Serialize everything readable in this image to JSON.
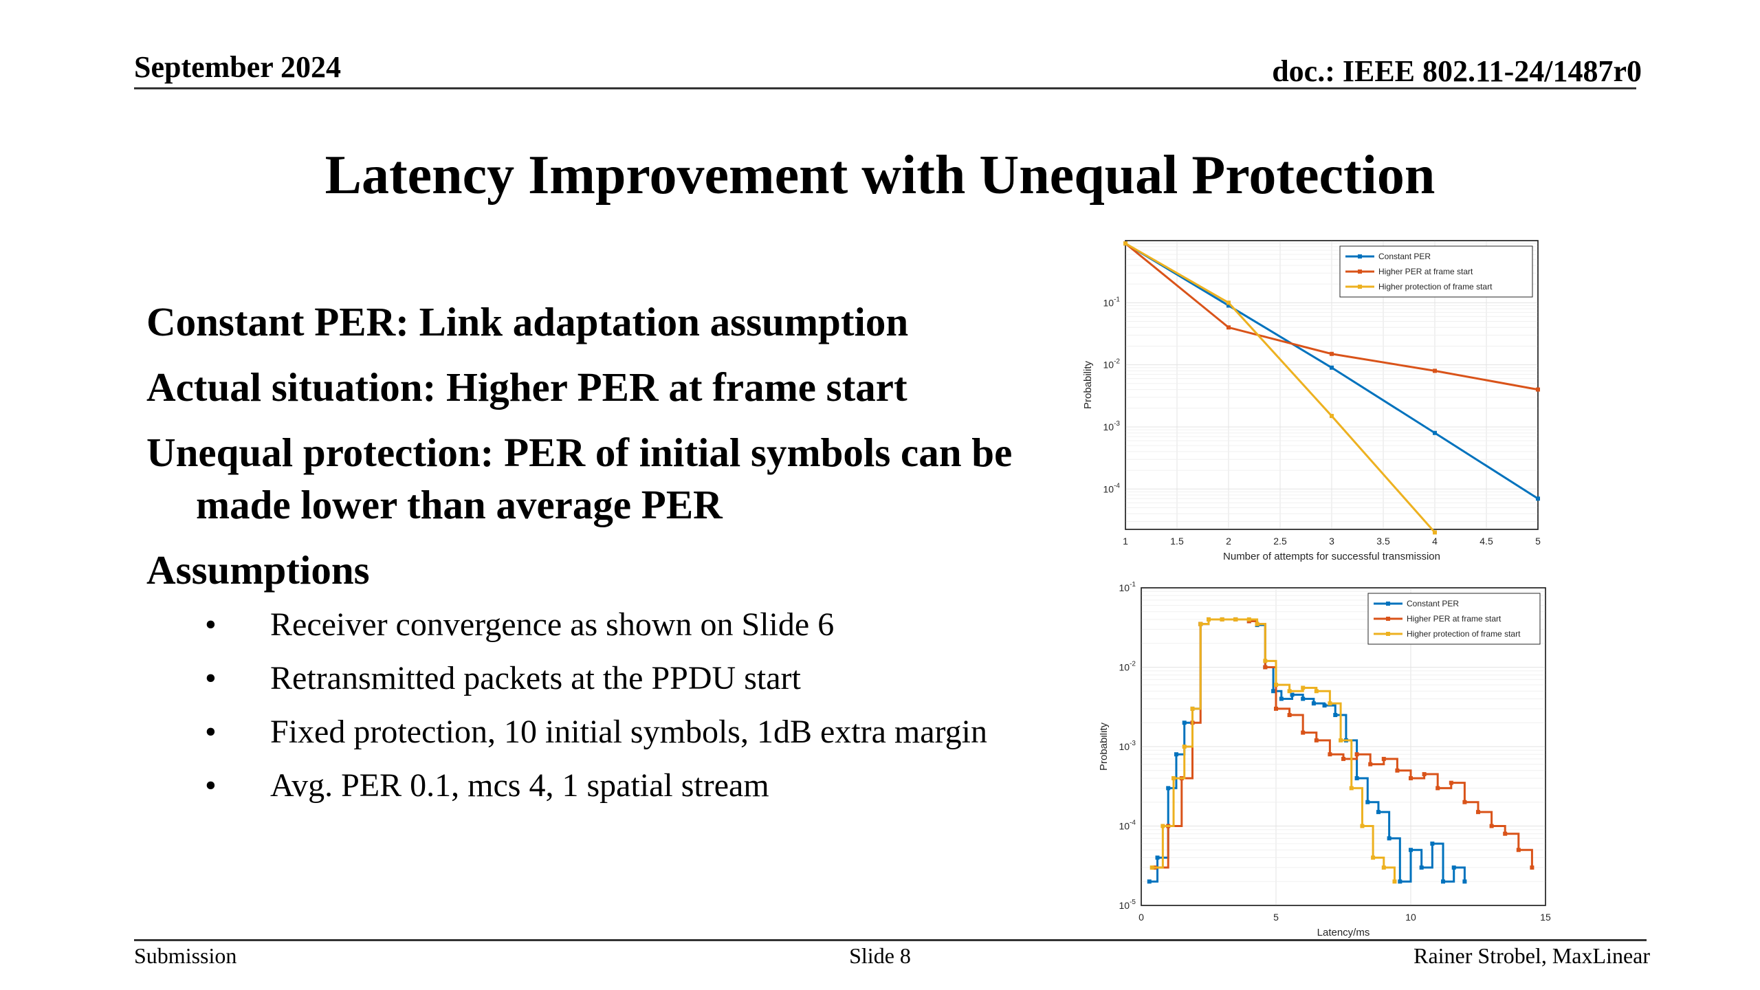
{
  "header": {
    "date": "September 2024",
    "doc_id": "doc.: IEEE 802.11-24/1487r0"
  },
  "title": "Latency Improvement with Unequal Protection",
  "bullets_level1": [
    "Constant PER: Link adaptation assumption",
    "Actual situation: Higher PER at frame start",
    "Unequal protection: PER of initial symbols can be made lower than average PER",
    "Assumptions"
  ],
  "bullets_level2": [
    "Receiver convergence as shown on Slide 6",
    "Retransmitted packets at the PPDU start",
    "Fixed protection, 10 initial symbols, 1dB extra margin",
    "Avg. PER 0.1, mcs 4, 1 spatial stream"
  ],
  "bullet_glyph": "•",
  "footer": {
    "left": "Submission",
    "center": "Slide 8",
    "right": "Rainer Strobel, MaxLinear"
  },
  "colors": {
    "constant": "#0072BD",
    "higher_per": "#D95319",
    "higher_prot": "#EDB120"
  },
  "chart_data": [
    {
      "type": "line",
      "xlabel": "Number of attempts for successful transmission",
      "ylabel": "Probability",
      "xlim": [
        1,
        5
      ],
      "ylim_log10": [
        -4.65,
        -0.0
      ],
      "y_scale": "log",
      "grid": true,
      "legend_position": "top-right",
      "x_ticks": [
        "1",
        "1.5",
        "2",
        "2.5",
        "3",
        "3.5",
        "4",
        "4.5",
        "5"
      ],
      "y_ticks": [
        {
          "base": "10",
          "exp": "-1",
          "v": -1
        },
        {
          "base": "10",
          "exp": "-2",
          "v": -2
        },
        {
          "base": "10",
          "exp": "-3",
          "v": -3
        },
        {
          "base": "10",
          "exp": "-4",
          "v": -4
        }
      ],
      "series": [
        {
          "name": "Constant PER",
          "x": [
            1,
            2,
            3,
            4,
            5
          ],
          "y": [
            0.9,
            0.09,
            0.009,
            0.0008,
            7e-05
          ]
        },
        {
          "name": "Higher PER at frame start",
          "x": [
            1,
            2,
            3,
            4,
            5
          ],
          "y": [
            0.9,
            0.04,
            0.015,
            0.008,
            0.004
          ]
        },
        {
          "name": "Higher protection of frame start",
          "x": [
            1,
            2,
            3,
            4
          ],
          "y": [
            0.9,
            0.1,
            0.0015,
            2e-05
          ]
        }
      ]
    },
    {
      "type": "line",
      "xlabel": "Latency/ms",
      "ylabel": "Probability",
      "xlim": [
        0,
        15
      ],
      "ylim_log10": [
        -5,
        -1
      ],
      "y_scale": "log",
      "grid": true,
      "legend_position": "top-right",
      "x_ticks": [
        "0",
        "5",
        "10",
        "15"
      ],
      "y_ticks": [
        {
          "base": "10",
          "exp": "-1",
          "v": -1
        },
        {
          "base": "10",
          "exp": "-2",
          "v": -2
        },
        {
          "base": "10",
          "exp": "-3",
          "v": -3
        },
        {
          "base": "10",
          "exp": "-4",
          "v": -4
        },
        {
          "base": "10",
          "exp": "-5",
          "v": -5
        }
      ],
      "series": [
        {
          "name": "Constant PER",
          "x": [
            0.3,
            0.6,
            1.0,
            1.3,
            1.6,
            1.9,
            2.2,
            2.5,
            3.0,
            3.5,
            4.0,
            4.3,
            4.6,
            4.9,
            5.2,
            5.6,
            6.0,
            6.4,
            6.8,
            7.2,
            7.6,
            8.0,
            8.4,
            8.8,
            9.2,
            9.6,
            10.0,
            10.4,
            10.8,
            11.2,
            11.6,
            12.0
          ],
          "y": [
            2e-05,
            4e-05,
            0.0003,
            0.0008,
            0.002,
            0.003,
            0.035,
            0.04,
            0.04,
            0.04,
            0.038,
            0.034,
            0.01,
            0.005,
            0.004,
            0.0045,
            0.004,
            0.0035,
            0.0033,
            0.0025,
            0.0012,
            0.0004,
            0.0002,
            0.00015,
            7e-05,
            2e-05,
            5e-05,
            3e-05,
            6e-05,
            2e-05,
            3e-05,
            2e-05
          ]
        },
        {
          "name": "Higher PER at frame start",
          "x": [
            0.5,
            1.0,
            1.5,
            1.9,
            2.2,
            2.5,
            3.0,
            3.5,
            4.0,
            4.3,
            4.6,
            5.0,
            5.5,
            6.0,
            6.5,
            7.0,
            7.5,
            8.0,
            8.5,
            9.0,
            9.5,
            10.0,
            10.5,
            11.0,
            11.5,
            12.0,
            12.5,
            13.0,
            13.5,
            14.0,
            14.5
          ],
          "y": [
            3e-05,
            0.0001,
            0.0004,
            0.002,
            0.035,
            0.04,
            0.04,
            0.04,
            0.038,
            0.035,
            0.01,
            0.003,
            0.0025,
            0.0015,
            0.0012,
            0.0008,
            0.0007,
            0.0008,
            0.0006,
            0.0007,
            0.0005,
            0.0004,
            0.00045,
            0.0003,
            0.00035,
            0.0002,
            0.00015,
            0.0001,
            8e-05,
            5e-05,
            3e-05
          ]
        },
        {
          "name": "Higher protection of frame start",
          "x": [
            0.4,
            0.8,
            1.2,
            1.6,
            1.9,
            2.2,
            2.5,
            3.0,
            3.5,
            4.0,
            4.3,
            4.6,
            5.0,
            5.5,
            6.0,
            6.5,
            7.0,
            7.4,
            7.8,
            8.2,
            8.6,
            9.0,
            9.4
          ],
          "y": [
            3e-05,
            0.0001,
            0.0004,
            0.001,
            0.003,
            0.035,
            0.04,
            0.04,
            0.04,
            0.04,
            0.035,
            0.012,
            0.006,
            0.005,
            0.0055,
            0.005,
            0.0035,
            0.0012,
            0.0003,
            0.0001,
            4e-05,
            3e-05,
            2e-05
          ]
        }
      ]
    }
  ]
}
